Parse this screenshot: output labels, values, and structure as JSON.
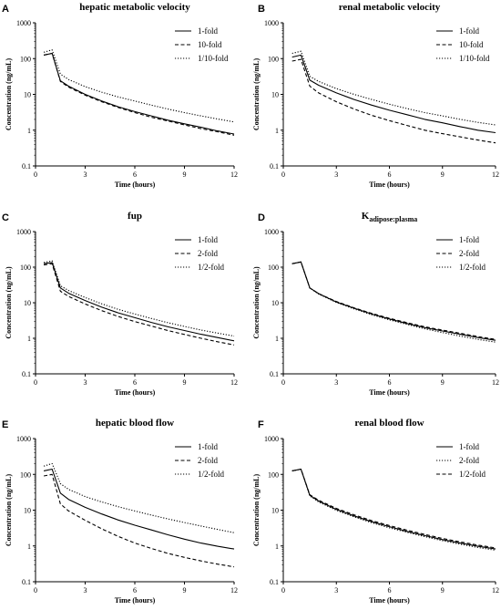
{
  "chart_data": [
    {
      "panel": "A",
      "type": "line",
      "title": "hepatic metabolic velocity",
      "xlabel": "Time (hours)",
      "ylabel": "Concentration (ng/mL)",
      "xlim": [
        0,
        12
      ],
      "ylim": [
        0.1,
        1000
      ],
      "yscale": "log",
      "xticks": [
        "0",
        "3",
        "6",
        "9",
        "12"
      ],
      "yticks": [
        "0.1",
        "1",
        "10",
        "100",
        "1000"
      ],
      "legend_position": "top-right",
      "series": [
        {
          "name": "1-fold",
          "style": "solid",
          "x": [
            0.5,
            1,
            1.5,
            2,
            3,
            4,
            5,
            6,
            7,
            8,
            9,
            10,
            11,
            12
          ],
          "y": [
            125,
            140,
            24,
            17,
            10,
            6.5,
            4.5,
            3.3,
            2.5,
            1.9,
            1.5,
            1.2,
            0.95,
            0.78
          ]
        },
        {
          "name": "10-fold",
          "style": "dashed",
          "x": [
            0.5,
            1,
            1.5,
            2,
            3,
            4,
            5,
            6,
            7,
            8,
            9,
            10,
            11,
            12
          ],
          "y": [
            125,
            140,
            23,
            16,
            9.5,
            6.2,
            4.3,
            3.1,
            2.3,
            1.8,
            1.4,
            1.1,
            0.9,
            0.72
          ]
        },
        {
          "name": "1/10-fold",
          "style": "dotted",
          "x": [
            0.5,
            1,
            1.5,
            2,
            3,
            4,
            5,
            6,
            7,
            8,
            9,
            10,
            11,
            12
          ],
          "y": [
            150,
            175,
            37,
            26,
            16.5,
            11.5,
            8.5,
            6.5,
            5.0,
            3.9,
            3.1,
            2.5,
            2.05,
            1.7
          ]
        }
      ]
    },
    {
      "panel": "B",
      "type": "line",
      "title": "renal metabolic velocity",
      "xlabel": "Time (hours)",
      "ylabel": "Concentration (ng/mL)",
      "xlim": [
        0,
        12
      ],
      "ylim": [
        0.1,
        1000
      ],
      "yscale": "log",
      "xticks": [
        "0",
        "3",
        "6",
        "9",
        "12"
      ],
      "yticks": [
        "0.1",
        "1",
        "10",
        "100",
        "1000"
      ],
      "legend_position": "top-right",
      "series": [
        {
          "name": "1-fold",
          "style": "solid",
          "x": [
            0.5,
            1,
            1.5,
            2,
            3,
            4,
            5,
            6,
            7,
            8,
            9,
            10,
            11,
            12
          ],
          "y": [
            110,
            125,
            25,
            18,
            11,
            7.2,
            5.0,
            3.6,
            2.7,
            2.0,
            1.6,
            1.25,
            1.0,
            0.85
          ]
        },
        {
          "name": "10-fold",
          "style": "dashed",
          "x": [
            0.5,
            1,
            1.5,
            2,
            3,
            4,
            5,
            6,
            7,
            8,
            9,
            10,
            11,
            12
          ],
          "y": [
            85,
            95,
            17,
            11,
            6.2,
            3.9,
            2.6,
            1.85,
            1.35,
            1.0,
            0.8,
            0.65,
            0.53,
            0.44
          ]
        },
        {
          "name": "1/10-fold",
          "style": "dotted",
          "x": [
            0.5,
            1,
            1.5,
            2,
            3,
            4,
            5,
            6,
            7,
            8,
            9,
            10,
            11,
            12
          ],
          "y": [
            140,
            160,
            32,
            23,
            14.5,
            10,
            7.2,
            5.3,
            4.0,
            3.1,
            2.5,
            2.0,
            1.65,
            1.4
          ]
        }
      ]
    },
    {
      "panel": "C",
      "type": "line",
      "title": "fup",
      "xlabel": "Time (hours)",
      "ylabel": "Concentration (ng/mL)",
      "xlim": [
        0,
        12
      ],
      "ylim": [
        0.1,
        1000
      ],
      "yscale": "log",
      "xticks": [
        "0",
        "3",
        "6",
        "9",
        "12"
      ],
      "yticks": [
        "0.1",
        "1",
        "10",
        "100",
        "1000"
      ],
      "legend_position": "top-right",
      "series": [
        {
          "name": "1-fold",
          "style": "solid",
          "x": [
            0.5,
            1,
            1.5,
            2,
            3,
            4,
            5,
            6,
            7,
            8,
            9,
            10,
            11,
            12
          ],
          "y": [
            125,
            135,
            26,
            18.5,
            11.5,
            7.5,
            5.2,
            3.8,
            2.8,
            2.1,
            1.65,
            1.3,
            1.05,
            0.85
          ]
        },
        {
          "name": "2-fold",
          "style": "dashed",
          "x": [
            0.5,
            1,
            1.5,
            2,
            3,
            4,
            5,
            6,
            7,
            8,
            9,
            10,
            11,
            12
          ],
          "y": [
            115,
            125,
            21,
            15,
            9.2,
            6.0,
            4.1,
            2.95,
            2.2,
            1.65,
            1.28,
            1.0,
            0.8,
            0.65
          ]
        },
        {
          "name": "1/2-fold",
          "style": "dotted",
          "x": [
            0.5,
            1,
            1.5,
            2,
            3,
            4,
            5,
            6,
            7,
            8,
            9,
            10,
            11,
            12
          ],
          "y": [
            135,
            150,
            30,
            22,
            14,
            9.3,
            6.5,
            4.8,
            3.6,
            2.75,
            2.15,
            1.7,
            1.4,
            1.15
          ]
        }
      ]
    },
    {
      "panel": "D",
      "type": "line",
      "title": "Kadipose:plasma",
      "title_main": "K",
      "title_sub": "adipose:plasma",
      "xlabel": "Time (hours)",
      "ylabel": "Concentration (ng/mL)",
      "xlim": [
        0,
        12
      ],
      "ylim": [
        0.1,
        1000
      ],
      "yscale": "log",
      "xticks": [
        "0",
        "3",
        "6",
        "9",
        "12"
      ],
      "yticks": [
        "0.1",
        "1",
        "10",
        "100",
        "1000"
      ],
      "legend_position": "top-right",
      "series": [
        {
          "name": "1-fold",
          "style": "solid",
          "x": [
            0.5,
            1,
            1.5,
            2,
            3,
            4,
            5,
            6,
            7,
            8,
            9,
            10,
            11,
            12
          ],
          "y": [
            125,
            140,
            26,
            18,
            10.5,
            7.0,
            4.8,
            3.5,
            2.6,
            2.0,
            1.6,
            1.3,
            1.05,
            0.88
          ]
        },
        {
          "name": "2-fold",
          "style": "dashed",
          "x": [
            0.5,
            1,
            1.5,
            2,
            3,
            4,
            5,
            6,
            7,
            8,
            9,
            10,
            11,
            12
          ],
          "y": [
            125,
            140,
            26,
            18,
            10.8,
            7.2,
            5.0,
            3.65,
            2.75,
            2.1,
            1.7,
            1.38,
            1.12,
            0.93
          ]
        },
        {
          "name": "1/2-fold",
          "style": "dotted",
          "x": [
            0.5,
            1,
            1.5,
            2,
            3,
            4,
            5,
            6,
            7,
            8,
            9,
            10,
            11,
            12
          ],
          "y": [
            125,
            140,
            26,
            17.5,
            10.2,
            6.7,
            4.6,
            3.3,
            2.45,
            1.85,
            1.45,
            1.15,
            0.93,
            0.78
          ]
        }
      ]
    },
    {
      "panel": "E",
      "type": "line",
      "title": "hepatic blood flow",
      "xlabel": "Time (hours)",
      "ylabel": "Concentration (ng/mL)",
      "xlim": [
        0,
        12
      ],
      "ylim": [
        0.1,
        1000
      ],
      "yscale": "log",
      "xticks": [
        "0",
        "3",
        "6",
        "9",
        "12"
      ],
      "yticks": [
        "0.1",
        "1",
        "10",
        "100",
        "1000"
      ],
      "legend_position": "top-right",
      "series": [
        {
          "name": "1-fold",
          "style": "solid",
          "x": [
            0.5,
            1,
            1.5,
            2,
            3,
            4,
            5,
            6,
            7,
            8,
            9,
            10,
            11,
            12
          ],
          "y": [
            125,
            140,
            30,
            20,
            12,
            7.8,
            5.3,
            3.8,
            2.8,
            2.05,
            1.55,
            1.2,
            0.98,
            0.82
          ]
        },
        {
          "name": "2-fold",
          "style": "dashed",
          "x": [
            0.5,
            1,
            1.5,
            2,
            3,
            4,
            5,
            6,
            7,
            8,
            9,
            10,
            11,
            12
          ],
          "y": [
            90,
            100,
            15,
            9.5,
            5.2,
            3.0,
            1.85,
            1.2,
            0.85,
            0.62,
            0.48,
            0.38,
            0.31,
            0.26
          ]
        },
        {
          "name": "1/2-fold",
          "style": "dotted",
          "x": [
            0.5,
            1,
            1.5,
            2,
            3,
            4,
            5,
            6,
            7,
            8,
            9,
            10,
            11,
            12
          ],
          "y": [
            170,
            200,
            55,
            38,
            24,
            17,
            12.5,
            9.5,
            7.3,
            5.7,
            4.5,
            3.6,
            2.9,
            2.35
          ]
        }
      ]
    },
    {
      "panel": "F",
      "type": "line",
      "title": "renal blood flow",
      "xlabel": "Time (hours)",
      "ylabel": "Concentration (ng/mL)",
      "xlim": [
        0,
        12
      ],
      "ylim": [
        0.1,
        1000
      ],
      "yscale": "log",
      "xticks": [
        "0",
        "3",
        "6",
        "9",
        "12"
      ],
      "yticks": [
        "0.1",
        "1",
        "10",
        "100",
        "1000"
      ],
      "legend_position": "top-right",
      "series": [
        {
          "name": "1-fold",
          "style": "solid",
          "x": [
            0.5,
            1,
            1.5,
            2,
            3,
            4,
            5,
            6,
            7,
            8,
            9,
            10,
            11,
            12
          ],
          "y": [
            125,
            140,
            26,
            18,
            10.5,
            6.9,
            4.75,
            3.45,
            2.55,
            1.95,
            1.5,
            1.2,
            0.98,
            0.82
          ]
        },
        {
          "name": "2-fold",
          "style": "dotted",
          "x": [
            0.5,
            1,
            1.5,
            2,
            3,
            4,
            5,
            6,
            7,
            8,
            9,
            10,
            11,
            12
          ],
          "y": [
            125,
            140,
            25,
            17,
            9.9,
            6.5,
            4.45,
            3.2,
            2.4,
            1.82,
            1.4,
            1.12,
            0.91,
            0.76
          ]
        },
        {
          "name": "1/2-fold",
          "style": "dashed",
          "x": [
            0.5,
            1,
            1.5,
            2,
            3,
            4,
            5,
            6,
            7,
            8,
            9,
            10,
            11,
            12
          ],
          "y": [
            125,
            140,
            27,
            19,
            11.2,
            7.4,
            5.1,
            3.7,
            2.75,
            2.1,
            1.62,
            1.3,
            1.06,
            0.88
          ]
        }
      ]
    }
  ]
}
